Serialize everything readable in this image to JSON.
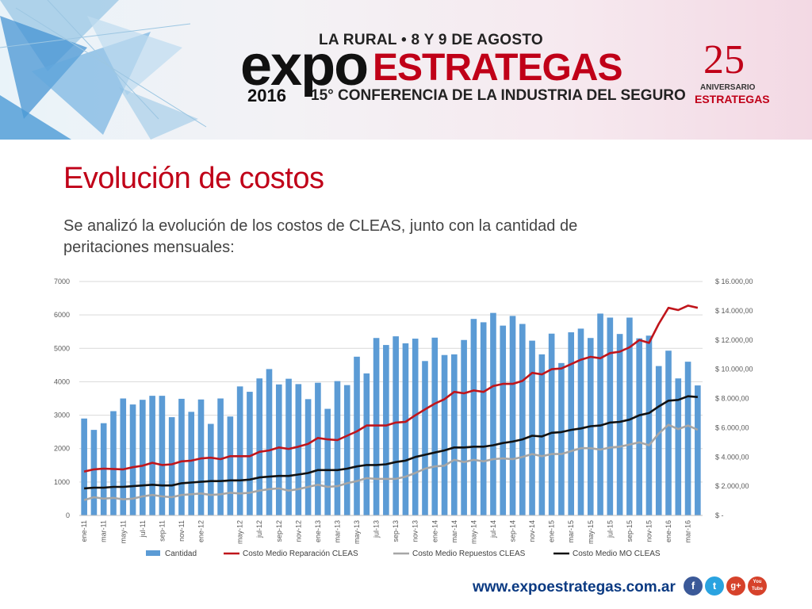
{
  "header": {
    "event_line": "LA RURAL • 8 Y 9 DE AGOSTO",
    "logo_expo": "expo",
    "logo_estrategas": "ESTRATEGAS",
    "logo_year": "2016",
    "logo_conference": "15° CONFERENCIA DE LA INDUSTRIA DEL SEGURO",
    "anniversary_number": "25",
    "anniversary_label": "ANIVERSARIO",
    "anniversary_brand": "ESTRATEGAS"
  },
  "slide": {
    "title": "Evolución de costos",
    "subtitle": "Se analizó la evolución de los costos de CLEAS, junto con la cantidad de peritaciones mensuales:"
  },
  "footer": {
    "url": "www.expoestrategas.com.ar",
    "icons": [
      "facebook-icon",
      "twitter-icon",
      "google-plus-icon",
      "youtube-icon"
    ],
    "icon_labels": {
      "facebook": "f",
      "twitter": "t",
      "gplus": "g+",
      "youtube": "You Tube"
    }
  },
  "colors": {
    "title_red": "#c00018",
    "bars": "#5b9bd5",
    "reparacion": "#c0151b",
    "repuestos": "#a6a6a6",
    "mo": "#111111",
    "url_blue": "#0b3a82"
  },
  "chart_data": {
    "type": "bar",
    "title": "",
    "categories": [
      "ene-11",
      "feb-11",
      "mar-11",
      "abr-11",
      "may-11",
      "jun-11",
      "jul-11",
      "ago-11",
      "sep-11",
      "oct-11",
      "nov-11",
      "dic-11",
      "ene-12",
      "feb-12",
      "mar-12",
      "abr-12",
      "may-12",
      "jun-12",
      "jul-12",
      "ago-12",
      "sep-12",
      "oct-12",
      "nov-12",
      "dic-12",
      "ene-13",
      "feb-13",
      "mar-13",
      "abr-13",
      "may-13",
      "jun-13",
      "jul-13",
      "ago-13",
      "sep-13",
      "oct-13",
      "nov-13",
      "dic-13",
      "ene-14",
      "feb-14",
      "mar-14",
      "abr-14",
      "may-14",
      "jun-14",
      "jul-14",
      "ago-14",
      "sep-14",
      "oct-14",
      "nov-14",
      "dic-14",
      "ene-15",
      "feb-15",
      "mar-15",
      "abr-15",
      "may-15",
      "jun-15",
      "jul-15",
      "ago-15",
      "sep-15",
      "oct-15",
      "nov-15",
      "dic-15",
      "ene-16",
      "feb-16",
      "mar-16",
      "abr-16"
    ],
    "tick_labels": [
      "ene-11",
      "mar-11",
      "may-11",
      "jul-11",
      "sep-11",
      "nov-11",
      "ene-12",
      "may-12",
      "jul-12",
      "sep-12",
      "nov-12",
      "ene-13",
      "mar-13",
      "may-13",
      "jul-13",
      "sep-13",
      "nov-13",
      "ene-14",
      "mar-14",
      "may-14",
      "jul-14",
      "sep-14",
      "nov-14",
      "ene-15",
      "mar-15",
      "may-15",
      "jul-15",
      "sep-15",
      "nov-15",
      "ene-16",
      "mar-16"
    ],
    "series": [
      {
        "name": "Cantidad",
        "type": "bar",
        "axis": "left",
        "values": [
          2900,
          2560,
          2760,
          3120,
          3500,
          3320,
          3460,
          3580,
          3580,
          2940,
          3490,
          3100,
          3470,
          2740,
          3500,
          2960,
          3860,
          3700,
          4100,
          4380,
          3920,
          4090,
          3930,
          3480,
          3970,
          3190,
          4020,
          3900,
          4750,
          4250,
          5310,
          5100,
          5360,
          5150,
          5290,
          4620,
          5320,
          4800,
          4820,
          5250,
          5880,
          5780,
          6060,
          5680,
          5970,
          5730,
          5230,
          4820,
          5440,
          4560,
          5480,
          5590,
          5310,
          6040,
          5920,
          5430,
          5920,
          5300,
          5380,
          4470,
          4930,
          4100,
          4600,
          3890
        ]
      },
      {
        "name": "Costo Medio Reparación CLEAS",
        "type": "line",
        "axis": "right",
        "values": [
          3000,
          3150,
          3200,
          3180,
          3150,
          3300,
          3400,
          3600,
          3450,
          3500,
          3700,
          3750,
          3900,
          3950,
          3850,
          4050,
          4050,
          4050,
          4350,
          4450,
          4650,
          4550,
          4700,
          4900,
          5300,
          5200,
          5150,
          5450,
          5750,
          6150,
          6150,
          6150,
          6350,
          6400,
          6850,
          7250,
          7650,
          7950,
          8450,
          8350,
          8550,
          8450,
          8850,
          9000,
          9000,
          9200,
          9750,
          9650,
          10000,
          10050,
          10350,
          10650,
          10850,
          10750,
          11100,
          11200,
          11500,
          12000,
          11800,
          13100,
          14200,
          14050,
          14350,
          14200
        ]
      },
      {
        "name": "Costo Medio Repuestos CLEAS",
        "type": "line",
        "axis": "right",
        "values": [
          1050,
          1250,
          1150,
          1200,
          1100,
          1150,
          1300,
          1400,
          1300,
          1250,
          1400,
          1450,
          1500,
          1400,
          1450,
          1550,
          1500,
          1550,
          1700,
          1800,
          1850,
          1700,
          1800,
          1950,
          2100,
          1950,
          2000,
          2200,
          2350,
          2550,
          2500,
          2500,
          2500,
          2650,
          2900,
          3200,
          3350,
          3400,
          3800,
          3650,
          3800,
          3700,
          3850,
          3900,
          3850,
          4000,
          4200,
          4050,
          4200,
          4200,
          4400,
          4600,
          4600,
          4500,
          4650,
          4700,
          4850,
          5000,
          4800,
          5600,
          6200,
          5900,
          6150,
          5850
        ]
      },
      {
        "name": "Costo Medio MO CLEAS",
        "type": "line",
        "axis": "right",
        "values": [
          1850,
          1900,
          1900,
          1950,
          1950,
          2000,
          2050,
          2100,
          2050,
          2050,
          2200,
          2250,
          2300,
          2350,
          2350,
          2400,
          2400,
          2450,
          2600,
          2650,
          2700,
          2700,
          2800,
          2900,
          3100,
          3100,
          3100,
          3200,
          3350,
          3450,
          3450,
          3500,
          3650,
          3750,
          4000,
          4150,
          4300,
          4450,
          4650,
          4650,
          4700,
          4700,
          4800,
          4950,
          5050,
          5200,
          5450,
          5400,
          5650,
          5700,
          5850,
          5950,
          6100,
          6150,
          6350,
          6400,
          6550,
          6850,
          7000,
          7450,
          7850,
          7900,
          8150,
          8100
        ]
      }
    ],
    "y_left": {
      "min": 0,
      "max": 7000,
      "ticks": [
        0,
        1000,
        2000,
        3000,
        4000,
        5000,
        6000,
        7000
      ],
      "labels": [
        "0",
        "1000",
        "2000",
        "3000",
        "4000",
        "5000",
        "6000",
        "7000"
      ]
    },
    "y_right": {
      "min": 0,
      "max": 16000,
      "ticks": [
        0,
        2000,
        4000,
        6000,
        8000,
        10000,
        12000,
        14000,
        16000
      ],
      "labels": [
        "$ -",
        "$ 2.000,00",
        "$ 4.000,00",
        "$ 6.000,00",
        "$ 8.000,00",
        "$ 10.000,00",
        "$ 12.000,00",
        "$ 14.000,00",
        "$ 16.000,00"
      ]
    },
    "legend": [
      "Cantidad",
      "Costo Medio Reparación CLEAS",
      "Costo Medio Repuestos CLEAS",
      "Costo Medio MO CLEAS"
    ],
    "legend_position": "bottom",
    "grid": true
  }
}
